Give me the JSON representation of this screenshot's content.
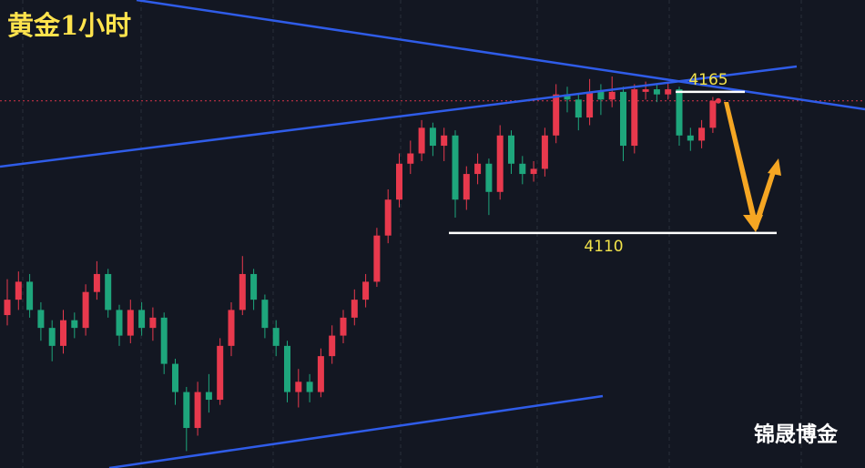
{
  "chart_data": {
    "type": "candlestick",
    "title": "黄金1小时",
    "watermark": "锦晟博金",
    "categories": [
      null,
      null,
      null,
      null,
      null,
      null,
      null,
      null,
      null,
      null,
      null,
      null,
      null,
      null,
      null,
      null,
      null,
      null,
      null,
      null,
      null,
      null,
      null,
      null,
      null,
      null,
      null,
      null,
      null,
      null,
      null,
      null,
      null,
      null,
      null,
      null,
      null,
      null,
      null,
      null,
      null,
      null,
      null,
      null,
      null,
      null,
      null,
      null,
      null,
      null,
      null,
      null,
      null,
      null,
      null,
      null,
      null,
      null,
      null,
      null,
      null,
      null,
      null,
      null
    ],
    "open": [
      4078,
      4084,
      4091,
      4080,
      4073,
      4066,
      4076,
      4073,
      4087,
      4094,
      4080,
      4070,
      4080,
      4073,
      4077,
      4059,
      4048,
      4034,
      4048,
      4045,
      4066,
      4080,
      4094,
      4084,
      4073,
      4066,
      4048,
      4052,
      4048,
      4062,
      4070,
      4077,
      4084,
      4091,
      4109,
      4123,
      4137,
      4141,
      4151,
      4144,
      4148,
      4123,
      4133,
      4137,
      4126,
      4148,
      4137,
      4133,
      4135,
      4148,
      4164,
      4162,
      4155,
      4165,
      4162,
      4165,
      4144,
      4165,
      4166,
      4164,
      4166,
      4148,
      4146,
      4151
    ],
    "high": [
      4092,
      4095,
      4094,
      4083,
      4076,
      4080,
      4079,
      4090,
      4099,
      4096,
      4082,
      4084,
      4083,
      4081,
      4079,
      4061,
      4050,
      4052,
      4055,
      4069,
      4083,
      4101,
      4096,
      4086,
      4076,
      4068,
      4057,
      4055,
      4065,
      4074,
      4080,
      4088,
      4094,
      4112,
      4127,
      4141,
      4146,
      4154,
      4153,
      4151,
      4150,
      4136,
      4141,
      4139,
      4152,
      4150,
      4140,
      4138,
      4151,
      4168,
      4167,
      4164,
      4170,
      4168,
      4171,
      4167,
      4168,
      4169,
      4168,
      4169,
      4167,
      4151,
      4154,
      4163
    ],
    "low": [
      4074,
      4080,
      4077,
      4068,
      4060,
      4063,
      4069,
      4070,
      4084,
      4077,
      4066,
      4067,
      4070,
      4068,
      4055,
      4043,
      4025,
      4031,
      4040,
      4043,
      4062,
      4078,
      4080,
      4069,
      4062,
      4044,
      4042,
      4044,
      4046,
      4059,
      4067,
      4074,
      4081,
      4089,
      4106,
      4120,
      4133,
      4138,
      4140,
      4138,
      4116,
      4119,
      4129,
      4117,
      4123,
      4133,
      4129,
      4130,
      4132,
      4145,
      4157,
      4150,
      4152,
      4156,
      4159,
      4138,
      4141,
      4162,
      4161,
      4162,
      4144,
      4142,
      4143,
      4149
    ],
    "close": [
      4084,
      4091,
      4080,
      4073,
      4066,
      4076,
      4073,
      4087,
      4094,
      4080,
      4070,
      4080,
      4073,
      4077,
      4059,
      4048,
      4034,
      4048,
      4045,
      4066,
      4080,
      4094,
      4084,
      4073,
      4066,
      4048,
      4052,
      4048,
      4062,
      4070,
      4077,
      4084,
      4091,
      4109,
      4123,
      4137,
      4141,
      4151,
      4144,
      4148,
      4123,
      4133,
      4137,
      4126,
      4148,
      4137,
      4133,
      4135,
      4148,
      4164,
      4162,
      4155,
      4165,
      4162,
      4165,
      4144,
      4166,
      4166,
      4164,
      4166,
      4148,
      4146,
      4151,
      4161.5
    ],
    "up_color": "#e8394d",
    "down_color": "#1ea67c",
    "ylim": [
      4018.4,
      4200.8
    ],
    "levels": [
      4165,
      4110
    ],
    "current_price": 4161.5
  }
}
